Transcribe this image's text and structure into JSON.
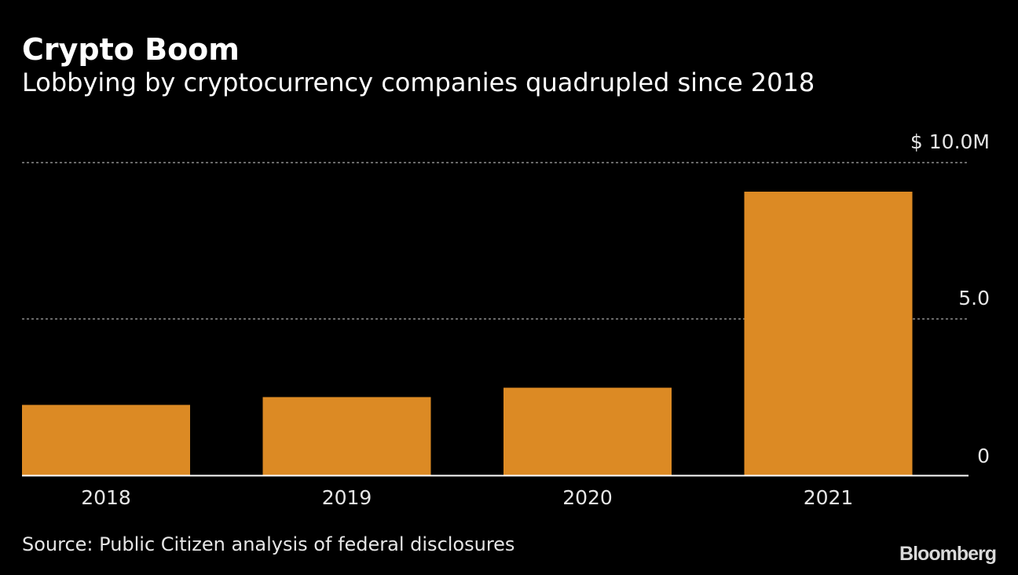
{
  "chart_data": {
    "type": "bar",
    "title": "Crypto Boom",
    "subtitle": "Lobbying by cryptocurrency companies quadrupled since 2018",
    "categories": [
      "2018",
      "2019",
      "2020",
      "2021"
    ],
    "values": [
      2.25,
      2.5,
      2.8,
      9.07
    ],
    "ylim": [
      0,
      10
    ],
    "y_ticks": [
      {
        "value": 10,
        "label": "$ 10.0M"
      },
      {
        "value": 5,
        "label": "5.0"
      },
      {
        "value": 0,
        "label": "0"
      }
    ],
    "xlabel": "",
    "ylabel": "",
    "grid": true,
    "y_axis_side": "right",
    "bar_color": "#DC8A24"
  },
  "footer": {
    "source": "Source: Public Citizen analysis of federal disclosures",
    "logo": "Bloomberg"
  }
}
